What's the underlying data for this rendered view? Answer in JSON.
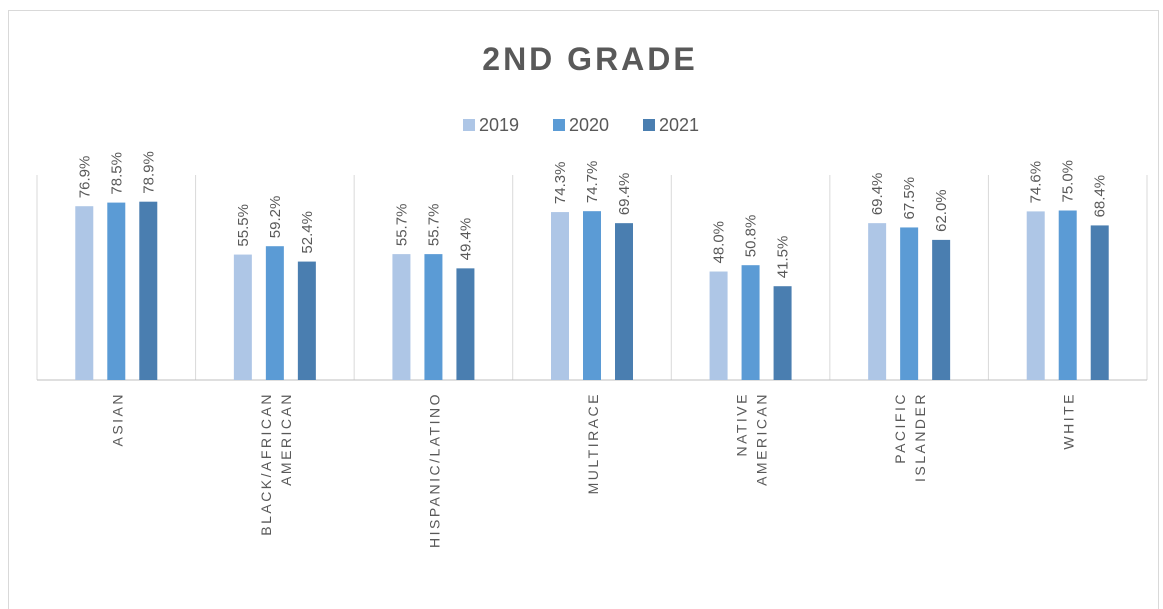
{
  "chart_data": {
    "type": "bar",
    "title": "2ND GRADE",
    "categories": [
      "ASIAN",
      "BLACK/AFRICAN\nAMERICAN",
      "HISPANIC/LATINO",
      "MULTIRACE",
      "NATIVE\nAMERICAN",
      "PACIFIC\nISLANDER",
      "WHITE"
    ],
    "series": [
      {
        "name": "2019",
        "color": "#aec6e6",
        "values": [
          76.9,
          55.5,
          55.7,
          74.3,
          48.0,
          69.4,
          74.6
        ],
        "value_labels": [
          "76.9%",
          "55.5%",
          "55.7%",
          "74.3%",
          "48.0%",
          "69.4%",
          "74.6%"
        ]
      },
      {
        "name": "2020",
        "color": "#5b9bd5",
        "values": [
          78.5,
          59.2,
          55.7,
          74.7,
          50.8,
          67.5,
          75.0
        ],
        "value_labels": [
          "78.5%",
          "59.2%",
          "55.7%",
          "74.7%",
          "50.8%",
          "67.5%",
          "75.0%"
        ]
      },
      {
        "name": "2021",
        "color": "#4a7eb0",
        "values": [
          78.9,
          52.4,
          49.4,
          69.4,
          41.5,
          62.0,
          68.4
        ],
        "value_labels": [
          "78.9%",
          "52.4%",
          "49.4%",
          "69.4%",
          "41.5%",
          "62.0%",
          "68.4%"
        ]
      }
    ],
    "ylim": [
      0,
      100
    ],
    "legend": "top"
  }
}
